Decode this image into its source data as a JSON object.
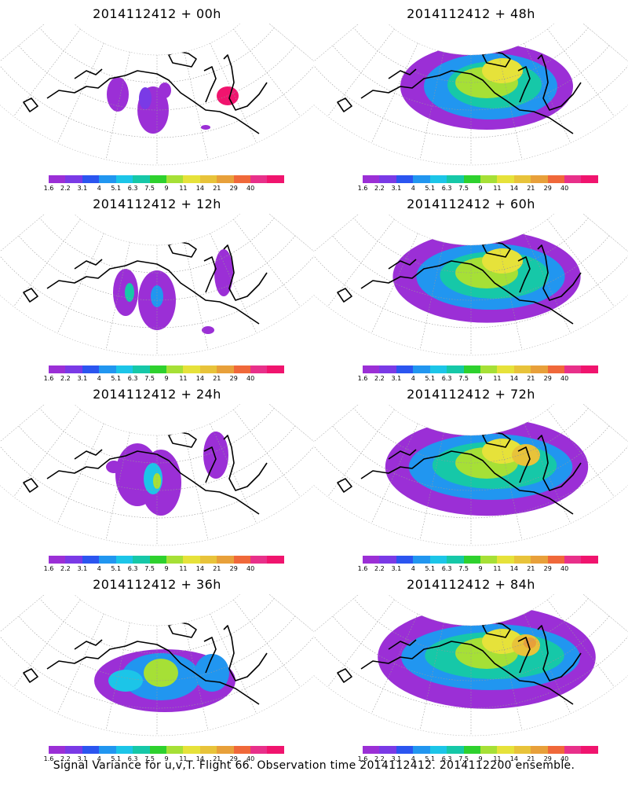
{
  "panels": [
    {
      "title": "2014112412 + 00h",
      "forecast_hour": 0
    },
    {
      "title": "2014112412 + 48h",
      "forecast_hour": 48
    },
    {
      "title": "2014112412 + 12h",
      "forecast_hour": 12
    },
    {
      "title": "2014112412 + 60h",
      "forecast_hour": 60
    },
    {
      "title": "2014112412 + 24h",
      "forecast_hour": 24
    },
    {
      "title": "2014112412 + 72h",
      "forecast_hour": 72
    },
    {
      "title": "2014112412 + 36h",
      "forecast_hour": 36
    },
    {
      "title": "2014112412 + 84h",
      "forecast_hour": 84
    }
  ],
  "colorbar": {
    "labels": [
      "1.6",
      "2.2",
      "3.1",
      "4",
      "5.1",
      "6.3",
      "7.5",
      "9",
      "11",
      "14",
      "21",
      "29",
      "40"
    ],
    "colors": [
      "#9b2fd6",
      "#7a3ae6",
      "#2b55f0",
      "#2196f0",
      "#1cc5e8",
      "#16c8a8",
      "#2ed12e",
      "#a6e036",
      "#e6e23a",
      "#e8c33a",
      "#e8a03a",
      "#f0683a",
      "#e8308a",
      "#f0146e"
    ]
  },
  "caption": "Signal Variance for u,v,T. Flight 66. Observation time 2014112412. 2014112200 ensemble."
}
